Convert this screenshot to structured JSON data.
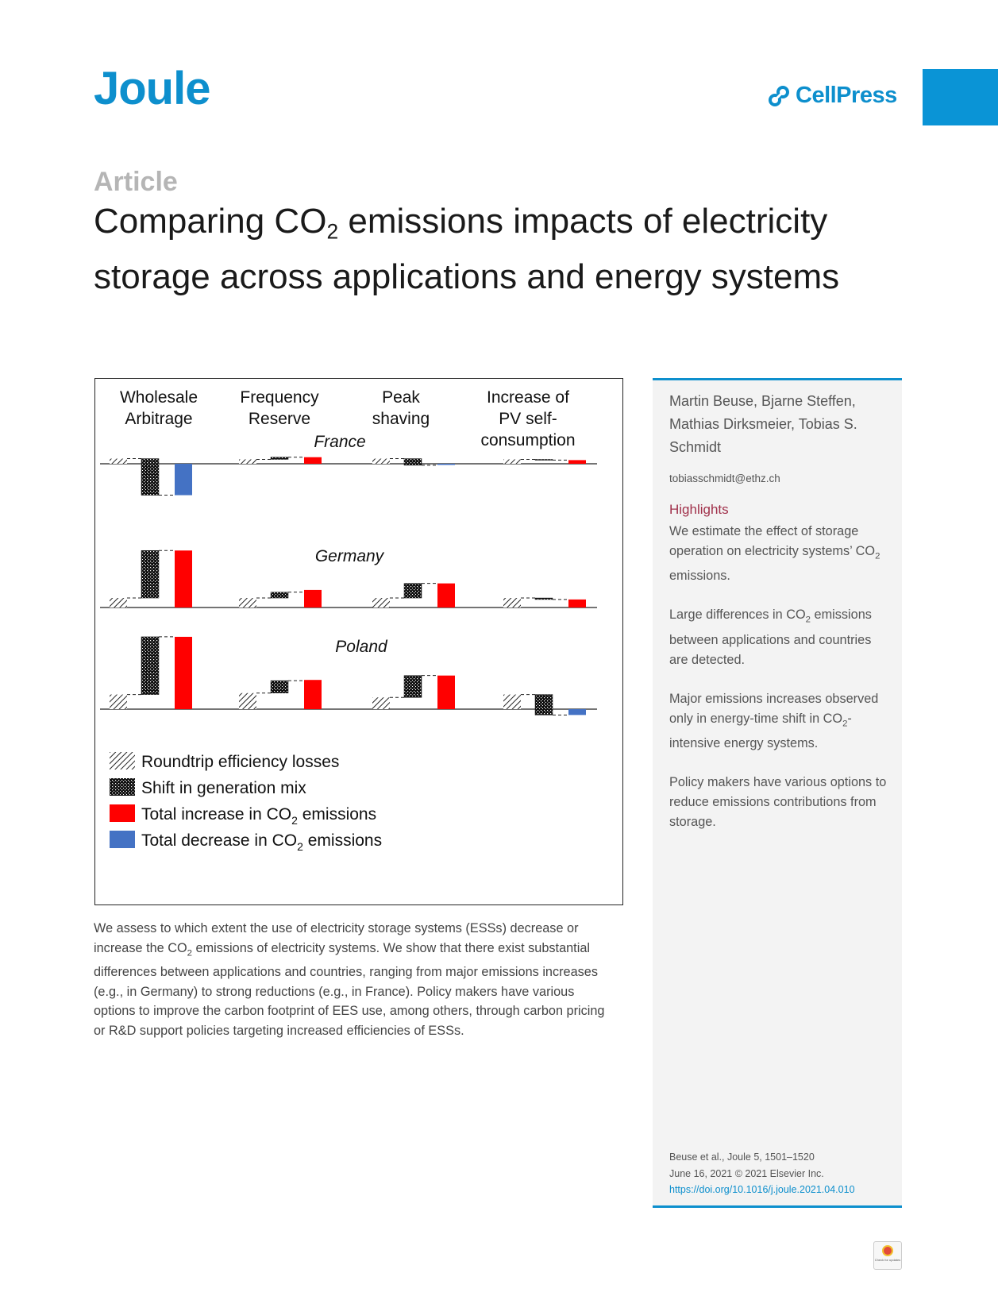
{
  "header": {
    "journal": "Joule",
    "publisher": "CellPress"
  },
  "article_type": "Article",
  "title": {
    "pre": "Comparing CO",
    "sub": "2",
    "post": " emissions impacts of electricity storage across applications and energy systems"
  },
  "figure": {
    "columns": [
      "Wholesale|Arbitrage",
      "Frequency|Reserve",
      "Peak|shaving",
      "Increase of|PV self-|consumption"
    ],
    "countries": [
      "France",
      "Germany",
      "Poland"
    ],
    "legend": [
      {
        "label": "Roundtrip efficiency losses",
        "pattern": "hatch"
      },
      {
        "label": "Shift in generation mix",
        "pattern": "dots"
      },
      {
        "label": "Total increase in CO",
        "sub": "2",
        "post": " emissions",
        "pattern": "red"
      },
      {
        "label": "Total decrease in CO",
        "sub": "2",
        "post": " emissions",
        "pattern": "blue"
      }
    ],
    "colors": {
      "increase": "#ff0000",
      "decrease": "#4472c4"
    }
  },
  "chart_data": {
    "type": "bar",
    "title": "",
    "series_order": [
      "roundtrip efficiency losses",
      "shift in generation mix",
      "total"
    ],
    "panels": [
      {
        "country": "France",
        "values": [
          {
            "application": "Wholesale Arbitrage",
            "roundtrip": 7,
            "shift": -50,
            "total": -43
          },
          {
            "application": "Frequency Reserve",
            "roundtrip": 6,
            "shift": 3,
            "total": 9
          },
          {
            "application": "Peak shaving",
            "roundtrip": 7,
            "shift": -9,
            "total": -1
          },
          {
            "application": "Increase of PV self-consumption",
            "roundtrip": 6,
            "shift": -1,
            "total": 5
          }
        ]
      },
      {
        "country": "Germany",
        "values": [
          {
            "application": "Wholesale Arbitrage",
            "roundtrip": 13,
            "shift": 65,
            "total": 78
          },
          {
            "application": "Frequency Reserve",
            "roundtrip": 13,
            "shift": 8,
            "total": 24
          },
          {
            "application": "Peak shaving",
            "roundtrip": 13,
            "shift": 20,
            "total": 33
          },
          {
            "application": "Increase of PV self-consumption",
            "roundtrip": 13,
            "shift": -2,
            "total": 11
          }
        ]
      },
      {
        "country": "Poland",
        "values": [
          {
            "application": "Wholesale Arbitrage",
            "roundtrip": 20,
            "shift": 79,
            "total": 99
          },
          {
            "application": "Frequency Reserve",
            "roundtrip": 22,
            "shift": 17,
            "total": 40
          },
          {
            "application": "Peak shaving",
            "roundtrip": 16,
            "shift": 30,
            "total": 46
          },
          {
            "application": "Increase of PV self-consumption",
            "roundtrip": 20,
            "shift": -28,
            "total": -8
          }
        ]
      }
    ]
  },
  "abstract": [
    {
      "t": "We assess to which extent the use of electricity storage systems (ESSs) decrease or increase the CO"
    },
    {
      "s": "2"
    },
    {
      "t": " emissions of electricity systems. We show that there exist substantial differences between applications and countries, ranging from major emissions increases (e.g., in Germany) to strong reductions (e.g., in France). Policy makers have various options to improve the carbon footprint of EES use, among others, through carbon pricing or R&D support policies targeting increased efficiencies of ESSs."
    }
  ],
  "sidebar": {
    "authors": "Martin Beuse, Bjarne Steffen, Mathias Dirksmeier, Tobias S. Schmidt",
    "email": "tobiasschmidt@ethz.ch",
    "highlights_heading": "Highlights",
    "highlights": [
      [
        {
          "t": "We estimate the effect of storage operation on electricity systems’ CO"
        },
        {
          "s": "2"
        },
        {
          "t": " emissions."
        }
      ],
      [
        {
          "t": "Large differences in CO"
        },
        {
          "s": "2"
        },
        {
          "t": " emissions between applications and countries are detected."
        }
      ],
      [
        {
          "t": "Major emissions increases observed only in energy-time shift in CO"
        },
        {
          "s": "2"
        },
        {
          "t": "-intensive energy systems."
        }
      ],
      [
        {
          "t": "Policy makers have various options to reduce emissions contributions from storage."
        }
      ]
    ],
    "citation_1": "Beuse et al., Joule 5, 1501–1520",
    "citation_2": "June 16, 2021 © 2021 Elsevier Inc.",
    "doi": "https://doi.org/10.1016/j.joule.2021.04.010"
  },
  "badge": {
    "text": "Check for updates"
  }
}
